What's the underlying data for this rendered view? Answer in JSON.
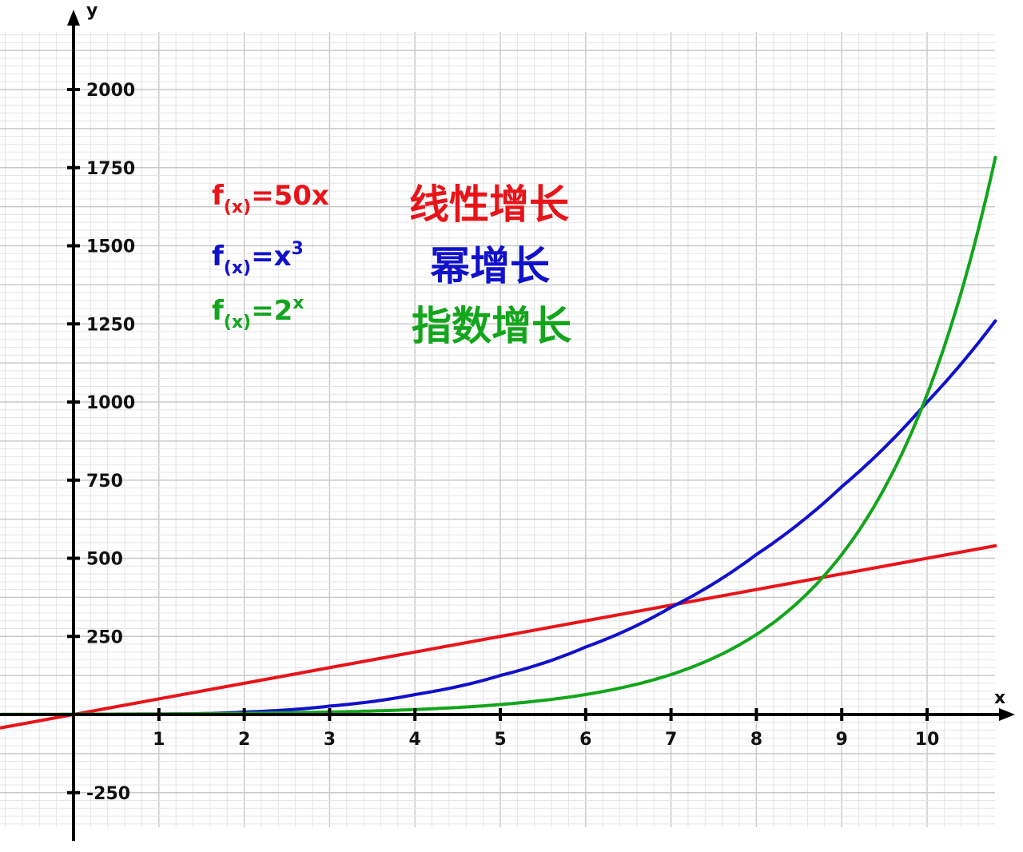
{
  "chart_data": {
    "type": "line",
    "xlabel": "x",
    "ylabel": "y",
    "xlim": [
      -0.85,
      11.05
    ],
    "ylim": [
      -400,
      2240
    ],
    "x_ticks": [
      1,
      2,
      3,
      4,
      5,
      6,
      7,
      8,
      9,
      10
    ],
    "y_ticks": [
      -250,
      250,
      500,
      750,
      1000,
      1250,
      1500,
      1750,
      2000
    ],
    "grid": true,
    "legend_placement": "top-left",
    "series": [
      {
        "formula_base": "f",
        "formula_sub": "(x)",
        "formula_rhs": "=50x",
        "formula_sup": "",
        "name": "线性增长",
        "color": "#e8141a",
        "x": [
          -0.85,
          10.8
        ],
        "y": [
          -42.5,
          540
        ]
      },
      {
        "formula_base": "f",
        "formula_sub": "(x)",
        "formula_rhs": "=x",
        "formula_sup": "3",
        "name": "幂增长",
        "color": "#1111cc",
        "x": [
          0,
          1,
          2,
          3,
          4,
          5,
          6,
          7,
          8,
          9,
          10,
          10.8
        ],
        "y": [
          0,
          1,
          8,
          27,
          64,
          125,
          216,
          343,
          512,
          729,
          1000,
          1259.7
        ]
      },
      {
        "formula_base": "f",
        "formula_sub": "(x)",
        "formula_rhs": "=2",
        "formula_sup": "x",
        "name": "指数增长",
        "color": "#13a51c",
        "x": [
          -0.85,
          0,
          1,
          2,
          3,
          4,
          5,
          6,
          7,
          8,
          9,
          10,
          10.8
        ],
        "y": [
          0.55,
          1,
          2,
          4,
          8,
          16,
          32,
          64,
          128,
          256,
          512,
          1024,
          1782.9
        ]
      }
    ]
  }
}
